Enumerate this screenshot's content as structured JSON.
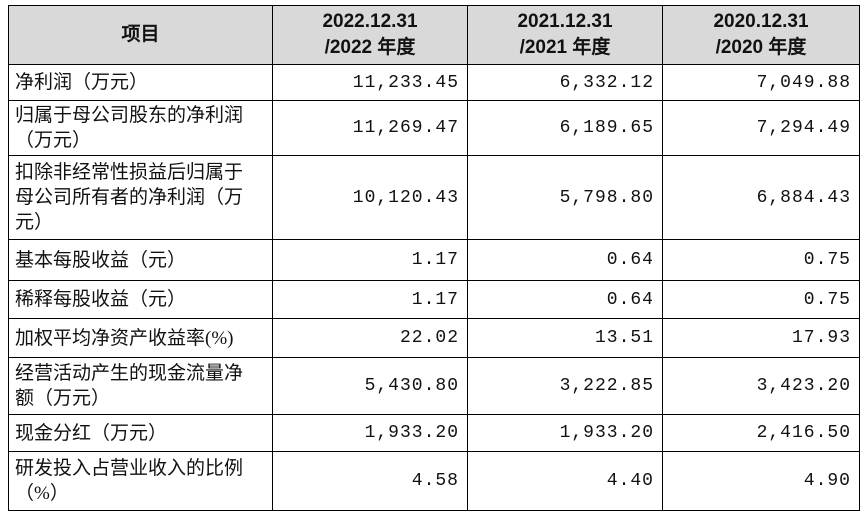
{
  "table": {
    "header": {
      "item": "项目",
      "columns": [
        {
          "date": "2022.12.31",
          "period": "/2022 年度"
        },
        {
          "date": "2021.12.31",
          "period": "/2021 年度"
        },
        {
          "date": "2020.12.31",
          "period": "/2020 年度"
        }
      ]
    },
    "rows": [
      [
        "净利润（万元）",
        "11,233.45",
        "6,332.12",
        "7,049.88"
      ],
      [
        "归属于母公司股东的净利润（万元）",
        "11,269.47",
        "6,189.65",
        "7,294.49"
      ],
      [
        "扣除非经常性损益后归属于母公司所有者的净利润（万元）",
        "10,120.43",
        "5,798.80",
        "6,884.43"
      ],
      [
        "基本每股收益（元）",
        "1.17",
        "0.64",
        "0.75"
      ],
      [
        "稀释每股收益（元）",
        "1.17",
        "0.64",
        "0.75"
      ],
      [
        "加权平均净资产收益率(%)",
        "22.02",
        "13.51",
        "17.93"
      ],
      [
        "经营活动产生的现金流量净额（万元）",
        "5,430.80",
        "3,222.85",
        "3,423.20"
      ],
      [
        "现金分红（万元）",
        "1,933.20",
        "1,933.20",
        "2,416.50"
      ],
      [
        "研发投入占营业收入的比例（%）",
        "4.58",
        "4.40",
        "4.90"
      ]
    ]
  }
}
